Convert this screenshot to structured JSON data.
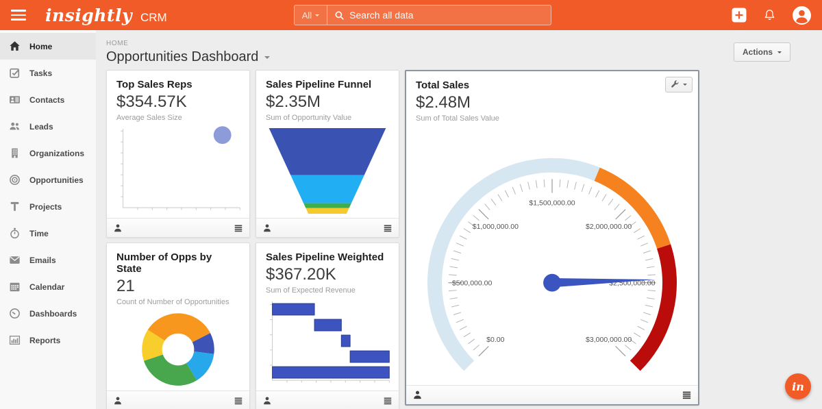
{
  "colors": {
    "accent_orange": "#f15b27",
    "needle_blue": "#3b55c0",
    "gauge_lightblue": "#d7e7f2",
    "gauge_orange": "#f5821f",
    "gauge_red": "#bb0c0c"
  },
  "topbar": {
    "brand": "insightly",
    "product": "CRM",
    "search": {
      "scope": "All",
      "placeholder": "Search all data"
    }
  },
  "sidebar": {
    "items": [
      {
        "label": "Home",
        "active": true
      },
      {
        "label": "Tasks"
      },
      {
        "label": "Contacts"
      },
      {
        "label": "Leads"
      },
      {
        "label": "Organizations"
      },
      {
        "label": "Opportunities"
      },
      {
        "label": "Projects"
      },
      {
        "label": "Time"
      },
      {
        "label": "Emails"
      },
      {
        "label": "Calendar"
      },
      {
        "label": "Dashboards"
      },
      {
        "label": "Reports"
      }
    ]
  },
  "header": {
    "breadcrumb": "HOME",
    "title": "Opportunities Dashboard",
    "actions_label": "Actions"
  },
  "cards": {
    "top_sales_reps": {
      "title": "Top Sales Reps",
      "metric": "$354.57K",
      "subtitle": "Average Sales Size"
    },
    "sales_pipeline_funnel": {
      "title": "Sales Pipeline Funnel",
      "metric": "$2.35M",
      "subtitle": "Sum of Opportunity Value"
    },
    "total_sales": {
      "title": "Total Sales",
      "metric": "$2.48M",
      "subtitle": "Sum of Total Sales Value"
    },
    "opps_by_state": {
      "title": "Number of Opps by State",
      "metric": "21",
      "subtitle": "Count of Number of Opportunities"
    },
    "sales_pipeline_weighted": {
      "title": "Sales Pipeline Weighted",
      "metric": "$367.20K",
      "subtitle": "Sum of Expected Revenue"
    }
  },
  "fab": {
    "label": "in"
  },
  "chart_data": [
    {
      "id": "top-sales-reps",
      "type": "scatter",
      "title": "Top Sales Reps",
      "color": "#8d9cd8",
      "x_ticks": 8,
      "y_ticks": 7,
      "grid": false,
      "points": [
        {
          "x": 0.85,
          "y": 0.92,
          "r": 13,
          "value": "$354.57K"
        }
      ]
    },
    {
      "id": "sales-pipeline-funnel",
      "type": "funnel",
      "title": "Sales Pipeline Funnel",
      "total_value": 2350000,
      "total_label": "$2.35M",
      "segments": [
        {
          "value": 1290000,
          "color": "#3a53b3"
        },
        {
          "value": 770000,
          "color": "#22aef2"
        },
        {
          "value": 130000,
          "color": "#3fae49"
        },
        {
          "value": 160000,
          "color": "#f6c92d"
        }
      ]
    },
    {
      "id": "total-sales",
      "type": "gauge",
      "title": "Total Sales",
      "min": 0,
      "max": 3000000,
      "value": 2480000,
      "start_angle": -135,
      "end_angle": 135,
      "tick_labels": [
        "$0.00",
        "$500,000.00",
        "$1,000,000.00",
        "$1,500,000.00",
        "$2,000,000.00",
        "$2,500,000.00",
        "$3,000,000.00"
      ],
      "zones": [
        {
          "from": 0,
          "to": 1750000,
          "color": "#d7e7f2"
        },
        {
          "from": 1750000,
          "to": 2300000,
          "color": "#f5821f"
        },
        {
          "from": 2300000,
          "to": 3000000,
          "color": "#bb0c0c"
        }
      ],
      "needle_color": "#3b55c0"
    },
    {
      "id": "opps-by-state",
      "type": "pie",
      "donut": true,
      "title": "Number of Opps by State",
      "total": 21,
      "start_angle": -57,
      "slices": [
        {
          "value": 7,
          "color": "#f8971d"
        },
        {
          "value": 2,
          "color": "#3d53b5"
        },
        {
          "value": 3,
          "color": "#26a8ea"
        },
        {
          "value": 6,
          "color": "#48a64c"
        },
        {
          "value": 3,
          "color": "#f7ce2b"
        }
      ]
    },
    {
      "id": "sales-pipeline-weighted",
      "type": "waterfall",
      "title": "Sales Pipeline Weighted",
      "total_value": 367200,
      "total_label": "$367.20K",
      "bar_color": "#3d53c0",
      "bar_border": "#2c3c8e",
      "x_ticks": 8,
      "y_ticks": 5,
      "segments_fraction": [
        0.36,
        0.23,
        0.075,
        0.335
      ]
    }
  ]
}
